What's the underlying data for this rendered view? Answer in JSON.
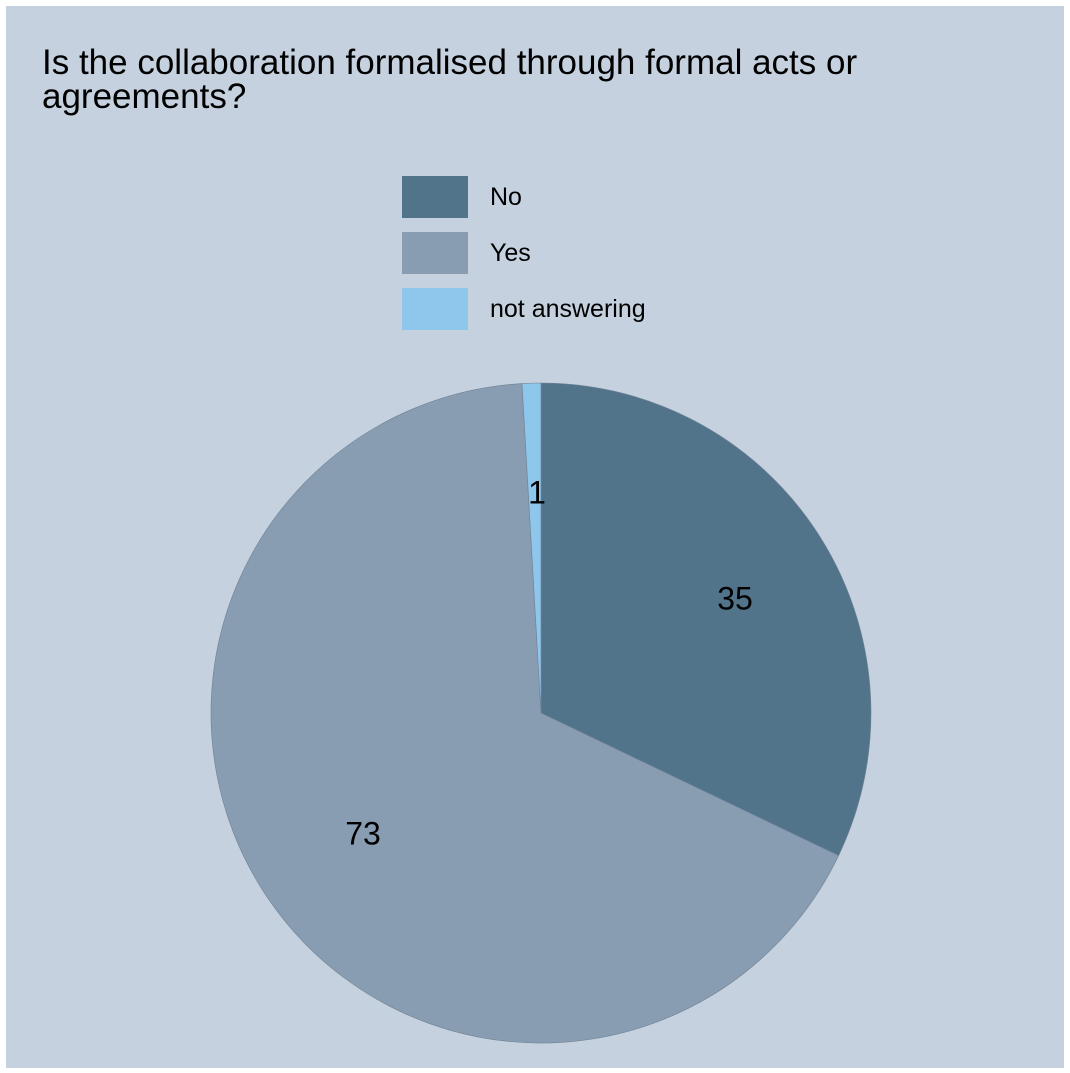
{
  "chart_data": {
    "type": "pie",
    "title": "Is the collaboration formalised through formal acts or agreements?",
    "categories": [
      "No",
      "Yes",
      "not answering"
    ],
    "values": [
      35,
      73,
      1
    ],
    "colors": [
      "#52748b",
      "#889db2",
      "#8ec6ec"
    ],
    "legend_position": "top-center",
    "start_angle": "12-o'clock",
    "direction": "clockwise",
    "background": "#c5d1de"
  }
}
